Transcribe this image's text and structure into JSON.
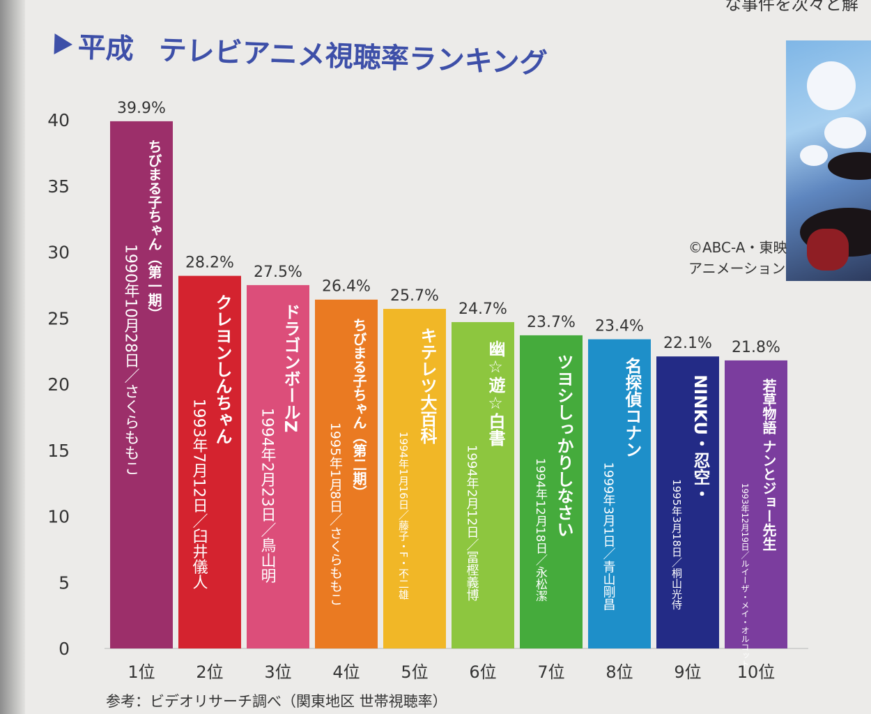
{
  "title": {
    "era": "平成",
    "main": "テレビアニメ視聴率ランキング"
  },
  "corner_text": "な事件を次々と解",
  "copyright": {
    "line1": "©ABC-A・東映",
    "line2": "アニメーション"
  },
  "footnote": "参考：ビデオリサーチ調べ（関東地区 世帯視聴率）",
  "chart_data": {
    "type": "bar",
    "title": "平成 テレビアニメ視聴率ランキング",
    "ylim": [
      0,
      40
    ],
    "yticks": [
      0,
      5,
      10,
      15,
      20,
      25,
      30,
      35,
      40
    ],
    "categories": [
      "1位",
      "2位",
      "3位",
      "4位",
      "5位",
      "6位",
      "7位",
      "8位",
      "9位",
      "10位"
    ],
    "values": [
      39.9,
      28.2,
      27.5,
      26.4,
      25.7,
      24.7,
      23.7,
      23.4,
      22.1,
      21.8
    ],
    "value_labels": [
      "39.9%",
      "28.2%",
      "27.5%",
      "26.4%",
      "25.7%",
      "24.7%",
      "23.7%",
      "23.4%",
      "22.1%",
      "21.8%"
    ],
    "bars": [
      {
        "title": "ちびまる子ちゃん（第一期）",
        "date": "1990年10月28日",
        "author": "さくらももこ",
        "color": "#9c2f6a"
      },
      {
        "title": "クレヨンしんちゃん",
        "date": "1993年7月12日",
        "author": "臼井儀人",
        "color": "#d4232f"
      },
      {
        "title": "ドラゴンボールZ",
        "date": "1994年2月23日",
        "author": "鳥山明",
        "color": "#dc4e7a"
      },
      {
        "title": "ちびまる子ちゃん（第二期）",
        "date": "1995年1月8日",
        "author": "さくらももこ",
        "color": "#ea7a22"
      },
      {
        "title": "キテレツ大百科",
        "date": "1994年1月16日",
        "author": "藤子・F・不二雄",
        "color": "#f1b727"
      },
      {
        "title": "幽☆遊☆白書",
        "date": "1994年2月12日",
        "author": "冨樫義博",
        "color": "#8dc63f"
      },
      {
        "title": "ツヨシしっかりしなさい",
        "date": "1994年12月18日",
        "author": "永松潔",
        "color": "#45ab3c"
      },
      {
        "title": "名探偵コナン",
        "date": "1999年3月1日",
        "author": "青山剛昌",
        "color": "#1e8fc9"
      },
      {
        "title": "NINKU・忍空・",
        "date": "1995年3月18日",
        "author": "桐山光侍",
        "color": "#232b86"
      },
      {
        "title": "若草物語 ナンとジョー先生",
        "date": "1993年12月19日",
        "author": "ルイーザ・メイ・オルコット",
        "color": "#7b3d9e"
      }
    ]
  }
}
